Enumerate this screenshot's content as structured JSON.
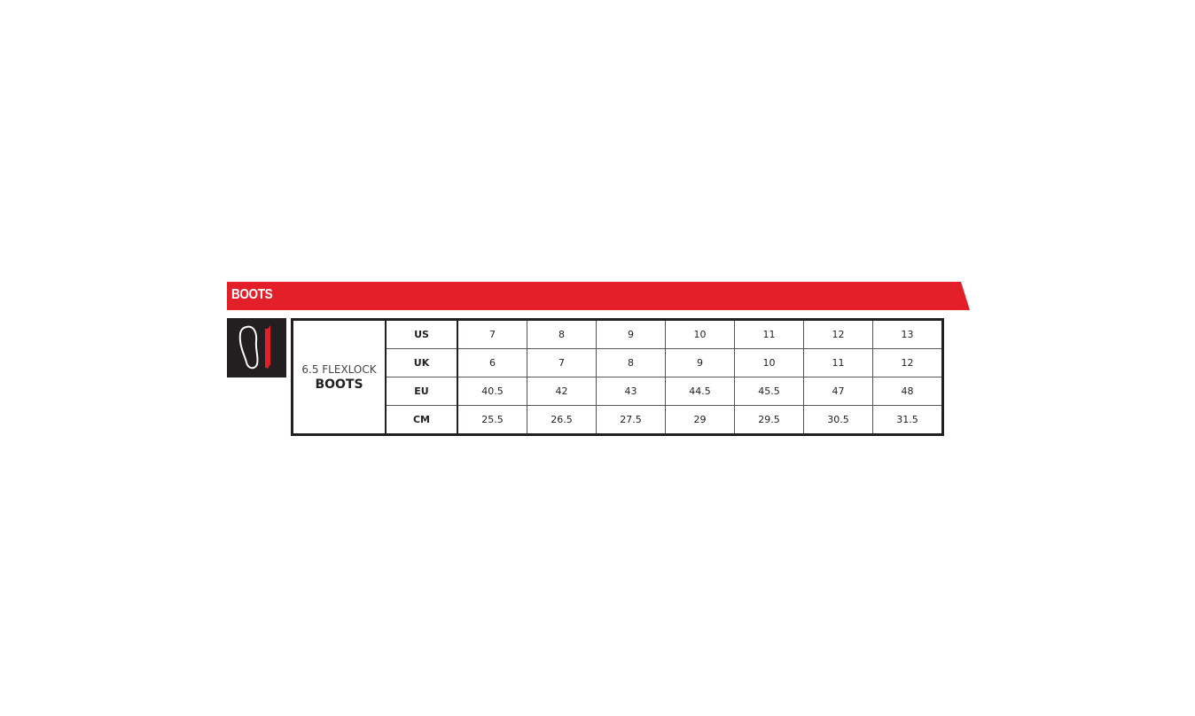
{
  "banner": {
    "title": "BOOTS"
  },
  "icon": "foot-length-icon",
  "colors": {
    "accent": "#e3202a",
    "dark": "#231f20"
  },
  "product": {
    "line1": "6.5 FLEXLOCK",
    "line2": "BOOTS"
  },
  "rows": [
    {
      "label": "US",
      "values": [
        "7",
        "8",
        "9",
        "10",
        "11",
        "12",
        "13"
      ]
    },
    {
      "label": "UK",
      "values": [
        "6",
        "7",
        "8",
        "9",
        "10",
        "11",
        "12"
      ]
    },
    {
      "label": "EU",
      "values": [
        "40.5",
        "42",
        "43",
        "44.5",
        "45.5",
        "47",
        "48"
      ]
    },
    {
      "label": "CM",
      "values": [
        "25.5",
        "26.5",
        "27.5",
        "29",
        "29.5",
        "30.5",
        "31.5"
      ]
    }
  ]
}
